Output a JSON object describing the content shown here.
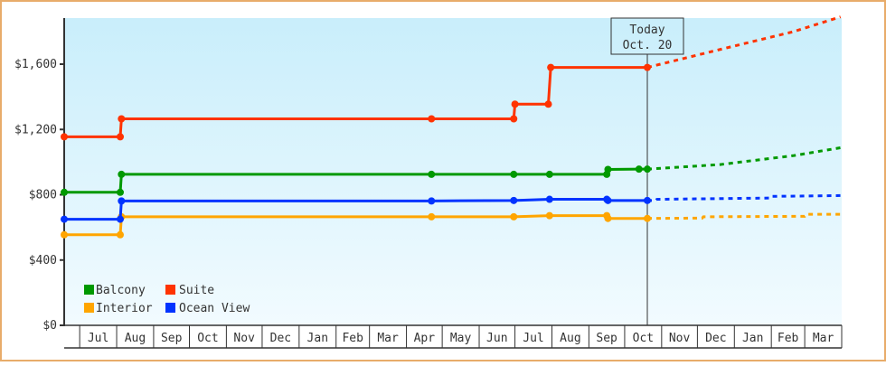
{
  "chart_data": {
    "type": "line",
    "title": "",
    "xlabel": "",
    "ylabel": "",
    "ylim": [
      0,
      1880
    ],
    "y_ticks": [
      "$0",
      "$400",
      "$800",
      "$1,200",
      "$1,600"
    ],
    "y_tick_values": [
      0,
      400,
      800,
      1200,
      1600
    ],
    "x_start": "Jun 18",
    "x_ticks": [
      "Jul",
      "Aug",
      "Sep",
      "Oct",
      "Nov",
      "Dec",
      "Jan",
      "Feb",
      "Mar",
      "Apr",
      "May",
      "Jun",
      "Jul",
      "Aug",
      "Sep",
      "Oct",
      "Nov",
      "Dec",
      "Jan",
      "Feb",
      "Mar"
    ],
    "grid": false,
    "legend_position": "bottom-left",
    "background": {
      "top": "#c9eefb",
      "bottom": "#f2fbff"
    },
    "frame_color": "#e8ac6a",
    "today": {
      "label": "Today",
      "date_label": "Oct. 20",
      "x": "Oct 20"
    },
    "series": [
      {
        "name": "Balcony",
        "color": "#009900",
        "points": [
          [
            "Jun 18",
            815
          ],
          [
            "Aug 4",
            815
          ],
          [
            "Aug 5",
            925
          ],
          [
            "Apr 22",
            925
          ],
          [
            "Jun 30",
            925
          ],
          [
            "Jul 30",
            925
          ],
          [
            "Sep 16",
            925
          ],
          [
            "Sep 17",
            955
          ],
          [
            "Oct 13",
            957
          ],
          [
            "Oct 20",
            957
          ]
        ],
        "projection": [
          [
            "Oct 20",
            957
          ],
          [
            "Dec 20",
            985
          ],
          [
            "Feb 20",
            1040
          ],
          [
            "Mar 31",
            1088
          ]
        ]
      },
      {
        "name": "Suite",
        "color": "#ff3300",
        "points": [
          [
            "Jun 18",
            1155
          ],
          [
            "Aug 4",
            1155
          ],
          [
            "Aug 5",
            1265
          ],
          [
            "Apr 22",
            1265
          ],
          [
            "Jun 30",
            1265
          ],
          [
            "Jul 1",
            1355
          ],
          [
            "Jul 29",
            1355
          ],
          [
            "Jul 31",
            1580
          ],
          [
            "Oct 20",
            1580
          ]
        ],
        "projection": [
          [
            "Oct 20",
            1580
          ],
          [
            "Dec 20",
            1690
          ],
          [
            "Feb 20",
            1800
          ],
          [
            "Mar 31",
            1890
          ]
        ]
      },
      {
        "name": "Interior",
        "color": "#ffa500",
        "points": [
          [
            "Jun 18",
            555
          ],
          [
            "Aug 4",
            555
          ],
          [
            "Aug 5",
            665
          ],
          [
            "Apr 22",
            665
          ],
          [
            "Jun 30",
            665
          ],
          [
            "Jul 30",
            672
          ],
          [
            "Sep 16",
            672
          ],
          [
            "Sep 17",
            655
          ],
          [
            "Oct 20",
            655
          ]
        ],
        "projection": [
          [
            "Oct 20",
            655
          ],
          [
            "Dec 5",
            657
          ],
          [
            "Dec 6",
            665
          ],
          [
            "Mar 1",
            668
          ],
          [
            "Mar 2",
            680
          ],
          [
            "Mar 31",
            680
          ]
        ]
      },
      {
        "name": "Ocean View",
        "color": "#0033ff",
        "points": [
          [
            "Jun 18",
            650
          ],
          [
            "Aug 4",
            650
          ],
          [
            "Aug 5",
            762
          ],
          [
            "Apr 22",
            762
          ],
          [
            "Jun 30",
            765
          ],
          [
            "Jul 30",
            772
          ],
          [
            "Sep 16",
            772
          ],
          [
            "Sep 17",
            765
          ],
          [
            "Oct 20",
            765
          ]
        ],
        "projection": [
          [
            "Oct 20",
            765
          ],
          [
            "Oct 27",
            765
          ],
          [
            "Oct 28",
            772
          ],
          [
            "Feb 1",
            780
          ],
          [
            "Feb 2",
            790
          ],
          [
            "Mar 31",
            795
          ]
        ]
      }
    ]
  }
}
